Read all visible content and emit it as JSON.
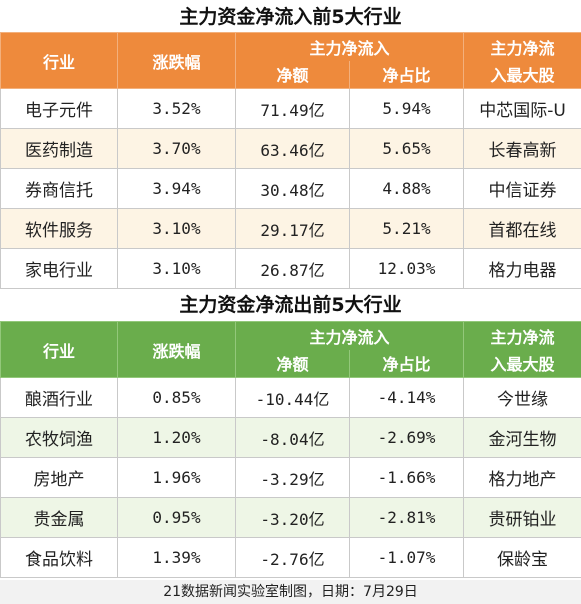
{
  "inflow": {
    "title": "主力资金净流入前5大行业",
    "headers": {
      "industry": "行业",
      "change": "涨跌幅",
      "net_flow_group": "主力净流入",
      "net_amount": "净额",
      "net_ratio": "净占比",
      "top_stock_line1": "主力净流",
      "top_stock_line2": "入最大股"
    },
    "rows": [
      {
        "industry": "电子元件",
        "change": "3.52%",
        "amount": "71.49亿",
        "ratio": "5.94%",
        "stock": "中芯国际-U"
      },
      {
        "industry": "医药制造",
        "change": "3.70%",
        "amount": "63.46亿",
        "ratio": "5.65%",
        "stock": "长春高新"
      },
      {
        "industry": "券商信托",
        "change": "3.94%",
        "amount": "30.48亿",
        "ratio": "4.88%",
        "stock": "中信证券"
      },
      {
        "industry": "软件服务",
        "change": "3.10%",
        "amount": "29.17亿",
        "ratio": "5.21%",
        "stock": "首都在线"
      },
      {
        "industry": "家电行业",
        "change": "3.10%",
        "amount": "26.87亿",
        "ratio": "12.03%",
        "stock": "格力电器"
      }
    ]
  },
  "outflow": {
    "title": "主力资金净流出前5大行业",
    "headers": {
      "industry": "行业",
      "change": "涨跌幅",
      "net_flow_group": "主力净流入",
      "net_amount": "净额",
      "net_ratio": "净占比",
      "top_stock_line1": "主力净流",
      "top_stock_line2": "入最大股"
    },
    "rows": [
      {
        "industry": "酿酒行业",
        "change": "0.85%",
        "amount": "-10.44亿",
        "ratio": "-4.14%",
        "stock": "今世缘"
      },
      {
        "industry": "农牧饲渔",
        "change": "1.20%",
        "amount": "-8.04亿",
        "ratio": "-2.69%",
        "stock": "金河生物"
      },
      {
        "industry": "房地产",
        "change": "1.96%",
        "amount": "-3.29亿",
        "ratio": "-1.66%",
        "stock": "格力地产"
      },
      {
        "industry": "贵金属",
        "change": "0.95%",
        "amount": "-3.20亿",
        "ratio": "-2.81%",
        "stock": "贵研铂业"
      },
      {
        "industry": "食品饮料",
        "change": "1.39%",
        "amount": "-2.76亿",
        "ratio": "-1.07%",
        "stock": "保龄宝"
      }
    ]
  },
  "footer": "21数据新闻实验室制图，日期：7月29日",
  "colors": {
    "inflow_header": "#ee8a3c",
    "outflow_header": "#6aad4c"
  }
}
